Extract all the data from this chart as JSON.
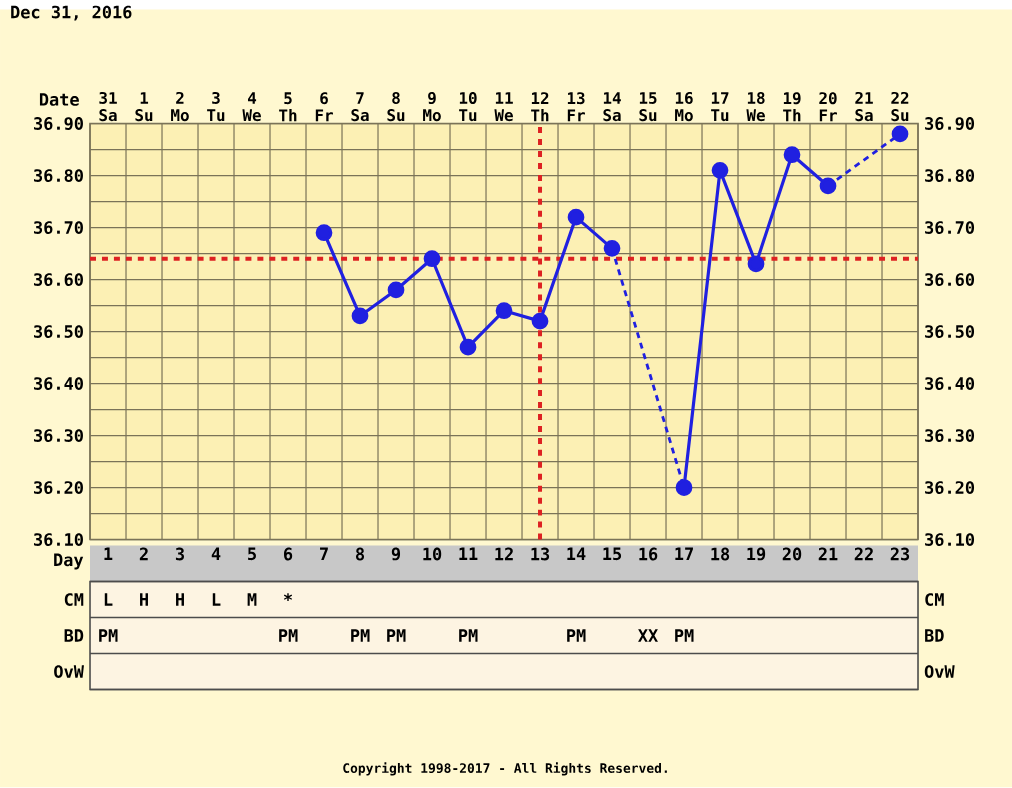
{
  "chart_data": [
    {
      "type": "line",
      "title": "Dec 31, 2016",
      "x2label": "Date",
      "xlabel": "Day",
      "categories": [
        "1",
        "2",
        "3",
        "4",
        "5",
        "6",
        "7",
        "8",
        "9",
        "10",
        "11",
        "12",
        "13",
        "14",
        "15",
        "16",
        "17",
        "18",
        "19",
        "20",
        "21",
        "22",
        "23"
      ],
      "x2lim": [
        "2016-12-30T12:00",
        "2017-01-22T12:00"
      ],
      "x2ticks": [
        {
          "value": "2016-12-31",
          "label": "31 Sa"
        },
        {
          "value": "2017-01-01",
          "label": "1 Su"
        },
        {
          "value": "2017-01-02",
          "label": "2 Mo"
        },
        {
          "value": "2017-01-03",
          "label": "3 Tu"
        },
        {
          "value": "2017-01-04",
          "label": "4 We"
        },
        {
          "value": "2017-01-05",
          "label": "5 Th"
        },
        {
          "value": "2017-01-06",
          "label": "6 Fr"
        },
        {
          "value": "2017-01-07",
          "label": "7 Sa"
        },
        {
          "value": "2017-01-08",
          "label": "8 Su"
        },
        {
          "value": "2017-01-09",
          "label": "9 Mo"
        },
        {
          "value": "2017-01-10",
          "label": "10 Tu"
        },
        {
          "value": "2017-01-11",
          "label": "11 We"
        },
        {
          "value": "2017-01-12",
          "label": "12 Th"
        },
        {
          "value": "2017-01-13",
          "label": "13 Fr"
        },
        {
          "value": "2017-01-14",
          "label": "14 Sa"
        },
        {
          "value": "2017-01-15",
          "label": "15 Su"
        },
        {
          "value": "2017-01-16",
          "label": "16 Mo"
        },
        {
          "value": "2017-01-17",
          "label": "17 Tu"
        },
        {
          "value": "2017-01-18",
          "label": "18 We"
        },
        {
          "value": "2017-01-19",
          "label": "19 Th"
        },
        {
          "value": "2017-01-20",
          "label": "20 Fr"
        },
        {
          "value": "2017-01-21",
          "label": "21 Sa"
        },
        {
          "value": "2017-01-22",
          "label": "22 Su"
        }
      ],
      "series": [
        {
          "color": "#2020e0",
          "values": [
            null,
            null,
            null,
            null,
            null,
            null,
            36.69,
            36.53,
            36.58,
            36.64,
            36.47,
            36.54,
            36.52,
            36.72,
            36.66,
            null,
            36.2,
            36.81,
            36.63,
            36.84,
            36.78,
            null,
            36.88
          ]
        }
      ],
      "ylim": [
        36.1,
        36.9
      ],
      "yticks": [
        {
          "value": 36.1,
          "label": "36.10"
        },
        {
          "value": 36.2,
          "label": "36.20"
        },
        {
          "value": 36.3,
          "label": "36.30"
        },
        {
          "value": 36.4,
          "label": "36.40"
        },
        {
          "value": 36.5,
          "label": "36.50"
        },
        {
          "value": 36.6,
          "label": "36.60"
        },
        {
          "value": 36.7,
          "label": "36.70"
        },
        {
          "value": 36.8,
          "label": "36.80"
        },
        {
          "value": 36.9,
          "label": "36.90"
        }
      ],
      "y2lim": [
        36.1,
        36.9
      ],
      "y2ticks": [
        {
          "value": 36.1,
          "label": "36.10"
        },
        {
          "value": 36.2,
          "label": "36.20"
        },
        {
          "value": 36.3,
          "label": "36.30"
        },
        {
          "value": 36.4,
          "label": "36.40"
        },
        {
          "value": 36.5,
          "label": "36.50"
        },
        {
          "value": 36.6,
          "label": "36.60"
        },
        {
          "value": 36.7,
          "label": "36.70"
        },
        {
          "value": 36.8,
          "label": "36.80"
        },
        {
          "value": 36.9,
          "label": "36.90"
        }
      ],
      "ref_lines": [
        {
          "axis": "y",
          "value": 36.64,
          "color": "#dd2222",
          "line_style": "dotted"
        },
        {
          "axis": "x",
          "value": "13",
          "color": "#dd2222",
          "line_style": "dotted"
        }
      ],
      "grid": true,
      "marker": "circle",
      "line_style": "solid"
    },
    {
      "type": "heatmap",
      "categories": [
        null,
        null,
        null,
        null,
        null,
        null,
        null,
        null,
        null,
        null,
        null,
        null,
        null,
        null,
        null,
        null,
        null,
        null,
        null,
        null,
        null,
        null,
        null
      ],
      "y_categories": [
        "CM",
        "BD",
        "OvW"
      ],
      "y2_categories": [
        "CM",
        "BD",
        "OvW"
      ],
      "cells": [
        [
          null,
          null,
          null,
          null,
          null,
          null,
          null,
          null,
          null,
          null,
          null,
          null,
          null,
          null,
          null,
          null,
          null,
          null,
          null,
          null,
          null,
          null,
          null
        ],
        [
          null,
          null,
          null,
          null,
          null,
          null,
          null,
          null,
          null,
          null,
          null,
          null,
          null,
          null,
          null,
          null,
          null,
          null,
          null,
          null,
          null,
          null,
          null
        ],
        [
          null,
          null,
          null,
          null,
          null,
          null,
          null,
          null,
          null,
          null,
          null,
          null,
          null,
          null,
          null,
          null,
          null,
          null,
          null,
          null,
          null,
          null,
          null
        ]
      ],
      "cell_labels": [
        [
          "L",
          "H",
          "H",
          "L",
          "M",
          "*",
          null,
          null,
          null,
          null,
          null,
          null,
          null,
          null,
          null,
          null,
          null,
          null,
          null,
          null,
          null,
          null,
          null
        ],
        [
          "PM",
          null,
          null,
          null,
          null,
          "PM",
          null,
          "PM",
          "PM",
          null,
          "PM",
          null,
          null,
          "PM",
          null,
          "XX",
          "PM",
          null,
          null,
          null,
          null,
          null,
          null
        ],
        [
          null,
          null,
          null,
          null,
          null,
          null,
          null,
          null,
          null,
          null,
          null,
          null,
          null,
          null,
          null,
          null,
          null,
          null,
          null,
          null,
          null,
          null,
          null
        ]
      ],
      "tick_labels": "y",
      "annotations": [
        "Copyright 1998-2017 - All Rights Reserved."
      ]
    }
  ]
}
